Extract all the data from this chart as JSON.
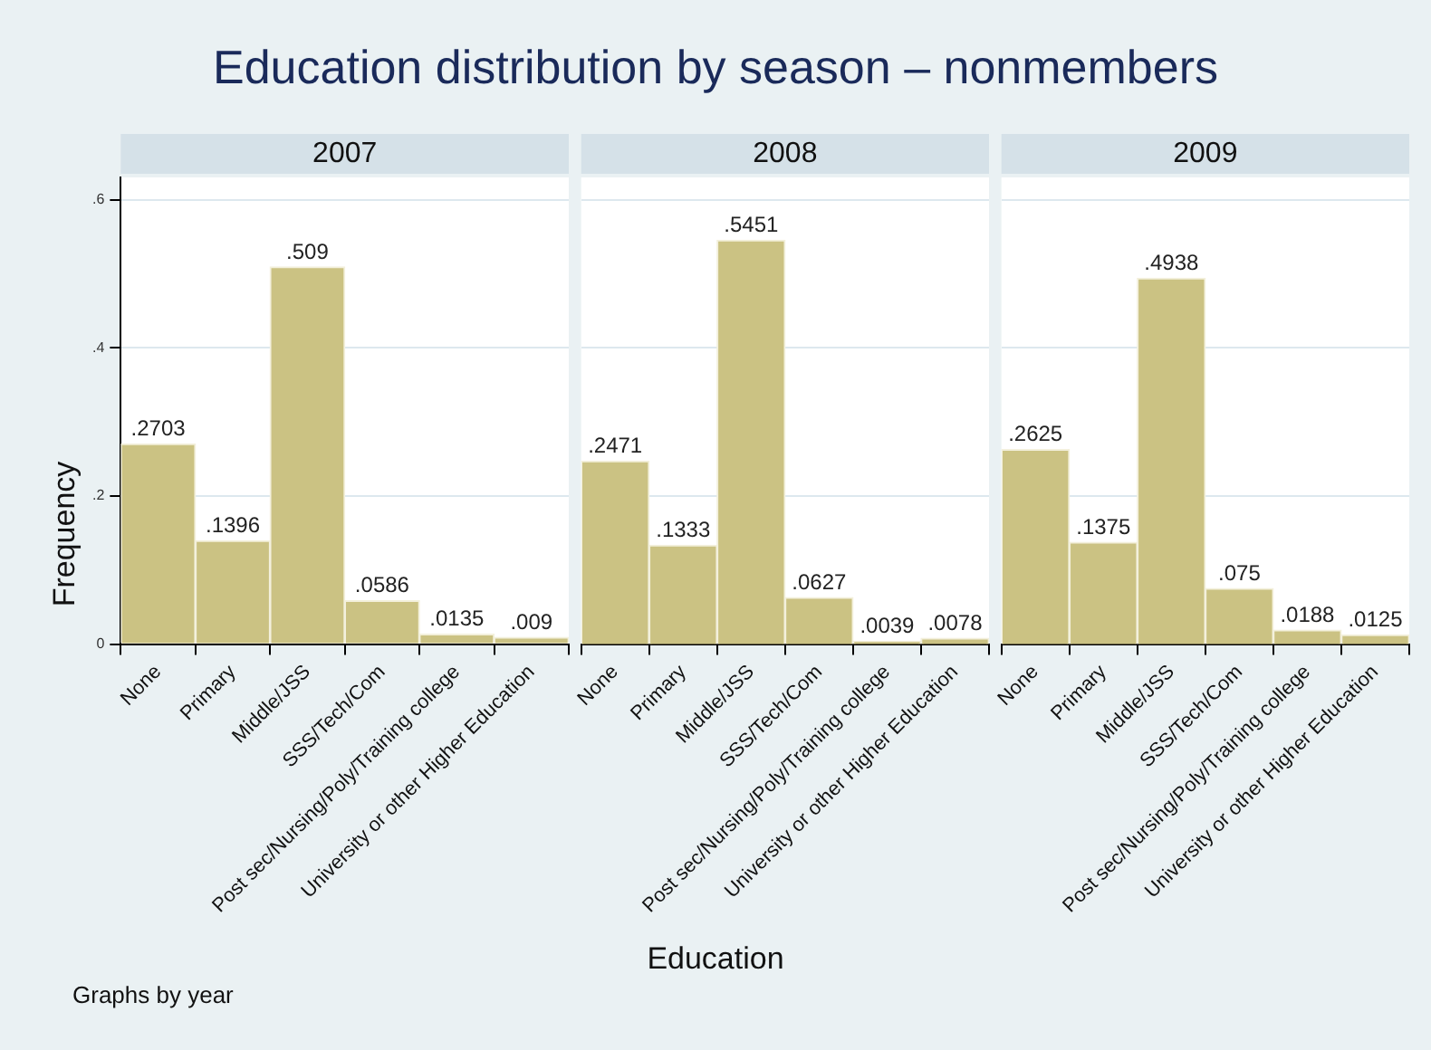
{
  "chart_data": [
    {
      "type": "bar",
      "title": "Education distribution by season – nonmembers",
      "subtitle": "2007",
      "ylabel": "Frequency",
      "annotations": [
        "Graphs by year"
      ],
      "categories": [
        "None",
        "Primary",
        "Middle/JSS",
        "SSS/Tech/Com",
        "Post sec/Nursing/Poly/Training college",
        "University or other Higher Education"
      ],
      "values": [
        0.2703,
        0.1396,
        0.509,
        0.0586,
        0.0135,
        0.009
      ],
      "value_labels": [
        ".2703",
        ".1396",
        ".509",
        ".0586",
        ".0135",
        ".009"
      ],
      "color": "#cbc283",
      "ylim": [
        0,
        0.63
      ],
      "yticks": [
        {
          "value": 0,
          "label": "0"
        },
        {
          "value": 0.2,
          "label": ".2"
        },
        {
          "value": 0.4,
          "label": ".4"
        },
        {
          "value": 0.6,
          "label": ".6"
        }
      ],
      "grid": "y",
      "legend": false
    },
    {
      "type": "bar",
      "subtitle": "2008",
      "xlabel": "Education",
      "categories": [
        "None",
        "Primary",
        "Middle/JSS",
        "SSS/Tech/Com",
        "Post sec/Nursing/Poly/Training college",
        "University or other Higher Education"
      ],
      "values": [
        0.2471,
        0.1333,
        0.5451,
        0.0627,
        0.0039,
        0.0078
      ],
      "value_labels": [
        ".2471",
        ".1333",
        ".5451",
        ".0627",
        ".0039",
        ".0078"
      ],
      "color": "#cbc283",
      "ylim": [
        0,
        0.63
      ],
      "yticks": [
        {
          "value": 0.2,
          "label": null
        },
        {
          "value": 0.4,
          "label": null
        },
        {
          "value": 0.6,
          "label": null
        }
      ],
      "grid": "y",
      "legend": false,
      "tick_labels": "x"
    },
    {
      "type": "bar",
      "subtitle": "2009",
      "categories": [
        "None",
        "Primary",
        "Middle/JSS",
        "SSS/Tech/Com",
        "Post sec/Nursing/Poly/Training college",
        "University or other Higher Education"
      ],
      "values": [
        0.2625,
        0.1375,
        0.4938,
        0.075,
        0.0188,
        0.0125
      ],
      "value_labels": [
        ".2625",
        ".1375",
        ".4938",
        ".075",
        ".0188",
        ".0125"
      ],
      "color": "#cbc283",
      "ylim": [
        0,
        0.63
      ],
      "yticks": [
        {
          "value": 0.2,
          "label": null
        },
        {
          "value": 0.4,
          "label": null
        },
        {
          "value": 0.6,
          "label": null
        }
      ],
      "grid": "y",
      "legend": false,
      "tick_labels": "x"
    }
  ]
}
